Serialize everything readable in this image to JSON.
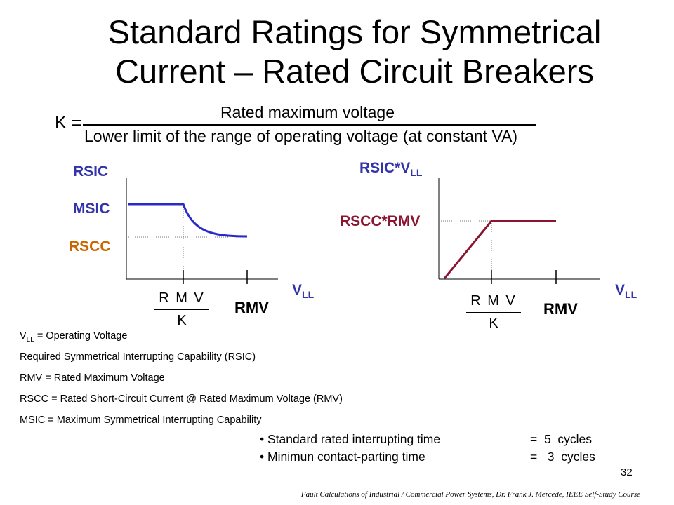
{
  "title": {
    "line1": "Standard Ratings for Symmetrical",
    "line2": "Current – Rated Circuit Breakers"
  },
  "formula": {
    "lhs": "K =",
    "numerator": "Rated maximum voltage",
    "denominator": "Lower limit of the range of operating voltage (at constant VA)"
  },
  "left_diagram": {
    "y_labels": {
      "rsic": "RSIC",
      "msic": "MSIC",
      "rscc": "RSCC"
    },
    "x_label": {
      "main": "V",
      "sub": "LL"
    },
    "frac": {
      "numerator": "R M V",
      "denominator": "K"
    },
    "rmv_label": "RMV"
  },
  "right_diagram": {
    "y_label_main": "RSIC*V",
    "y_label_sub": "LL",
    "y_label_level": "RSCC*RMV",
    "x_label": {
      "main": "V",
      "sub": "LL"
    },
    "frac": {
      "numerator": "R M V",
      "denominator": "K"
    },
    "rmv_label": "RMV"
  },
  "definitions": {
    "vll_main": "V",
    "vll_sub": "LL",
    "vll_rest": " = Operating Voltage",
    "rsic": "Required Symmetrical Interrupting Capability (RSIC)",
    "rmv": "RMV = Rated Maximum Voltage",
    "rscc": "RSCC = Rated Short-Circuit Current @ Rated Maximum Voltage (RMV)",
    "msic": "MSIC  = Maximum Symmetrical Interrupting Capability"
  },
  "bullets": [
    {
      "text": "Standard rated interrupting time",
      "value": "=  5  cycles"
    },
    {
      "text": "Minimun contact-parting time",
      "value": "=   3  cycles"
    }
  ],
  "page_number": "32",
  "footer": "Fault Calculations of Industrial / Commercial Power Systems, Dr. Frank J. Mercede, IEEE Self-Study Course",
  "colors": {
    "blue_curve": "#2a2acc",
    "blue_label": "#3333aa",
    "orange_label": "#cc6600",
    "maroon": "#8b1530"
  }
}
